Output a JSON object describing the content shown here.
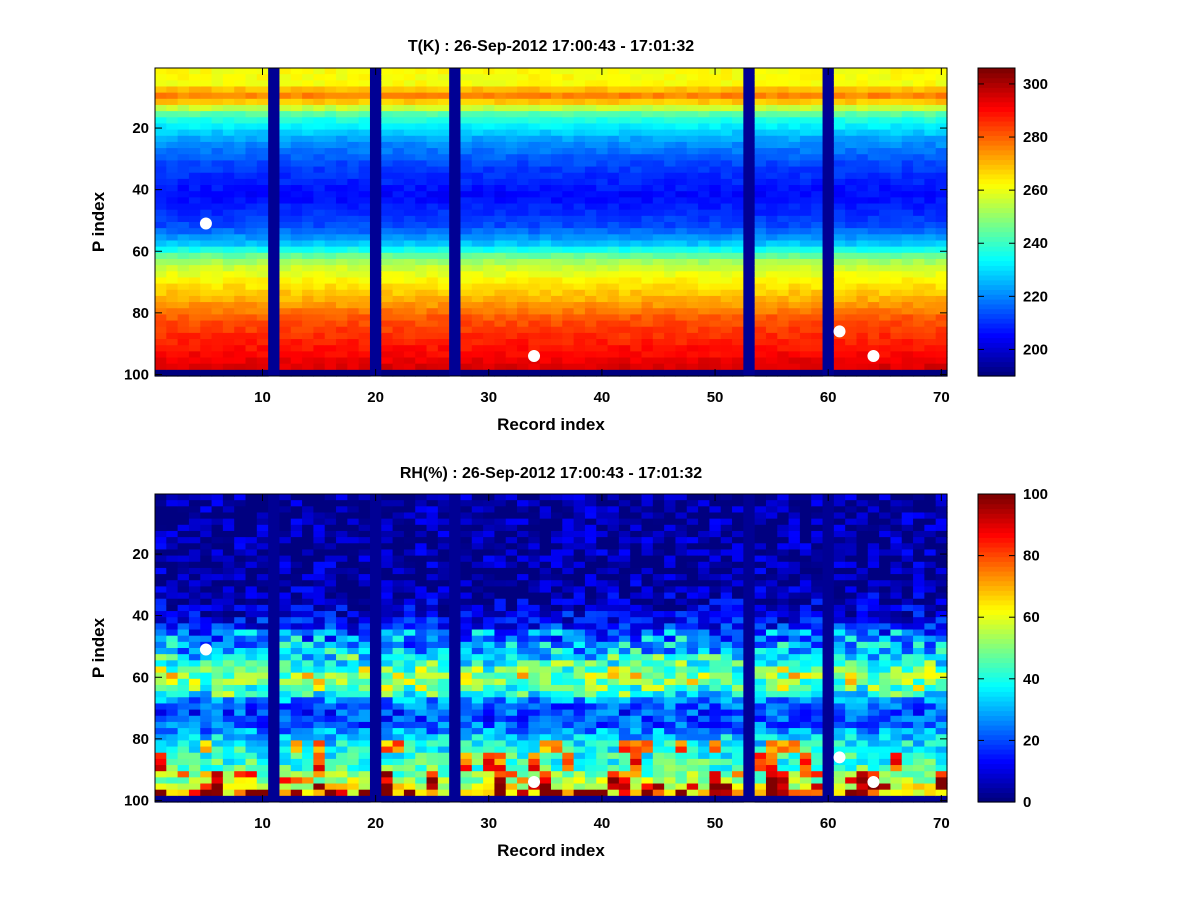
{
  "chart_data": [
    {
      "type": "heatmap",
      "title": "T(K) : 26-Sep-2012 17:00:43 - 17:01:32",
      "xlabel": "Record index",
      "ylabel": "P index",
      "xlim": [
        0.5,
        70.5
      ],
      "ylim": [
        100.5,
        0.5
      ],
      "xticks": [
        10,
        20,
        30,
        40,
        50,
        60,
        70
      ],
      "yticks": [
        20,
        40,
        60,
        80,
        100
      ],
      "colormap": "jet",
      "colorbar": {
        "clim": [
          190,
          306
        ],
        "ticks": [
          200,
          220,
          240,
          260,
          280,
          300
        ]
      },
      "missing_records": [
        11,
        20,
        27,
        53,
        60
      ],
      "profile": [
        {
          "p": 1,
          "value": 262
        },
        {
          "p": 6,
          "value": 262
        },
        {
          "p": 9,
          "value": 278
        },
        {
          "p": 11,
          "value": 272
        },
        {
          "p": 16,
          "value": 240
        },
        {
          "p": 24,
          "value": 222
        },
        {
          "p": 32,
          "value": 212
        },
        {
          "p": 42,
          "value": 205
        },
        {
          "p": 52,
          "value": 213
        },
        {
          "p": 58,
          "value": 228
        },
        {
          "p": 62,
          "value": 248
        },
        {
          "p": 65,
          "value": 256
        },
        {
          "p": 70,
          "value": 264
        },
        {
          "p": 76,
          "value": 272
        },
        {
          "p": 82,
          "value": 282
        },
        {
          "p": 88,
          "value": 287
        },
        {
          "p": 94,
          "value": 292
        },
        {
          "p": 98,
          "value": 296
        },
        {
          "p": 99,
          "value": 190
        },
        {
          "p": 100,
          "value": 190
        }
      ],
      "markers": [
        {
          "record": 5,
          "p": 51
        },
        {
          "record": 34,
          "p": 94
        },
        {
          "record": 61,
          "p": 86
        },
        {
          "record": 64,
          "p": 94
        }
      ]
    },
    {
      "type": "heatmap",
      "title": "RH(%) : 26-Sep-2012 17:00:43 - 17:01:32",
      "xlabel": "Record index",
      "ylabel": "P index",
      "xlim": [
        0.5,
        70.5
      ],
      "ylim": [
        100.5,
        0.5
      ],
      "xticks": [
        10,
        20,
        30,
        40,
        50,
        60,
        70
      ],
      "yticks": [
        20,
        40,
        60,
        80,
        100
      ],
      "colormap": "jet",
      "colorbar": {
        "clim": [
          0,
          100
        ],
        "ticks": [
          0,
          20,
          40,
          60,
          80,
          100
        ]
      },
      "missing_records": [
        11,
        20,
        27,
        53,
        60
      ],
      "profile": [
        {
          "p": 1,
          "value": 2
        },
        {
          "p": 30,
          "value": 3
        },
        {
          "p": 38,
          "value": 8
        },
        {
          "p": 46,
          "value": 18
        },
        {
          "p": 52,
          "value": 28
        },
        {
          "p": 56,
          "value": 38
        },
        {
          "p": 60,
          "value": 50
        },
        {
          "p": 64,
          "value": 40
        },
        {
          "p": 68,
          "value": 25
        },
        {
          "p": 72,
          "value": 18
        },
        {
          "p": 76,
          "value": 22
        },
        {
          "p": 80,
          "value": 34
        },
        {
          "p": 85,
          "value": 40
        },
        {
          "p": 90,
          "value": 45
        },
        {
          "p": 94,
          "value": 55
        },
        {
          "p": 97,
          "value": 65
        },
        {
          "p": 98,
          "value": 70
        },
        {
          "p": 99,
          "value": 2
        },
        {
          "p": 100,
          "value": 2
        }
      ],
      "markers": [
        {
          "record": 5,
          "p": 51
        },
        {
          "record": 34,
          "p": 94
        },
        {
          "record": 61,
          "p": 86
        },
        {
          "record": 64,
          "p": 94
        }
      ]
    }
  ]
}
